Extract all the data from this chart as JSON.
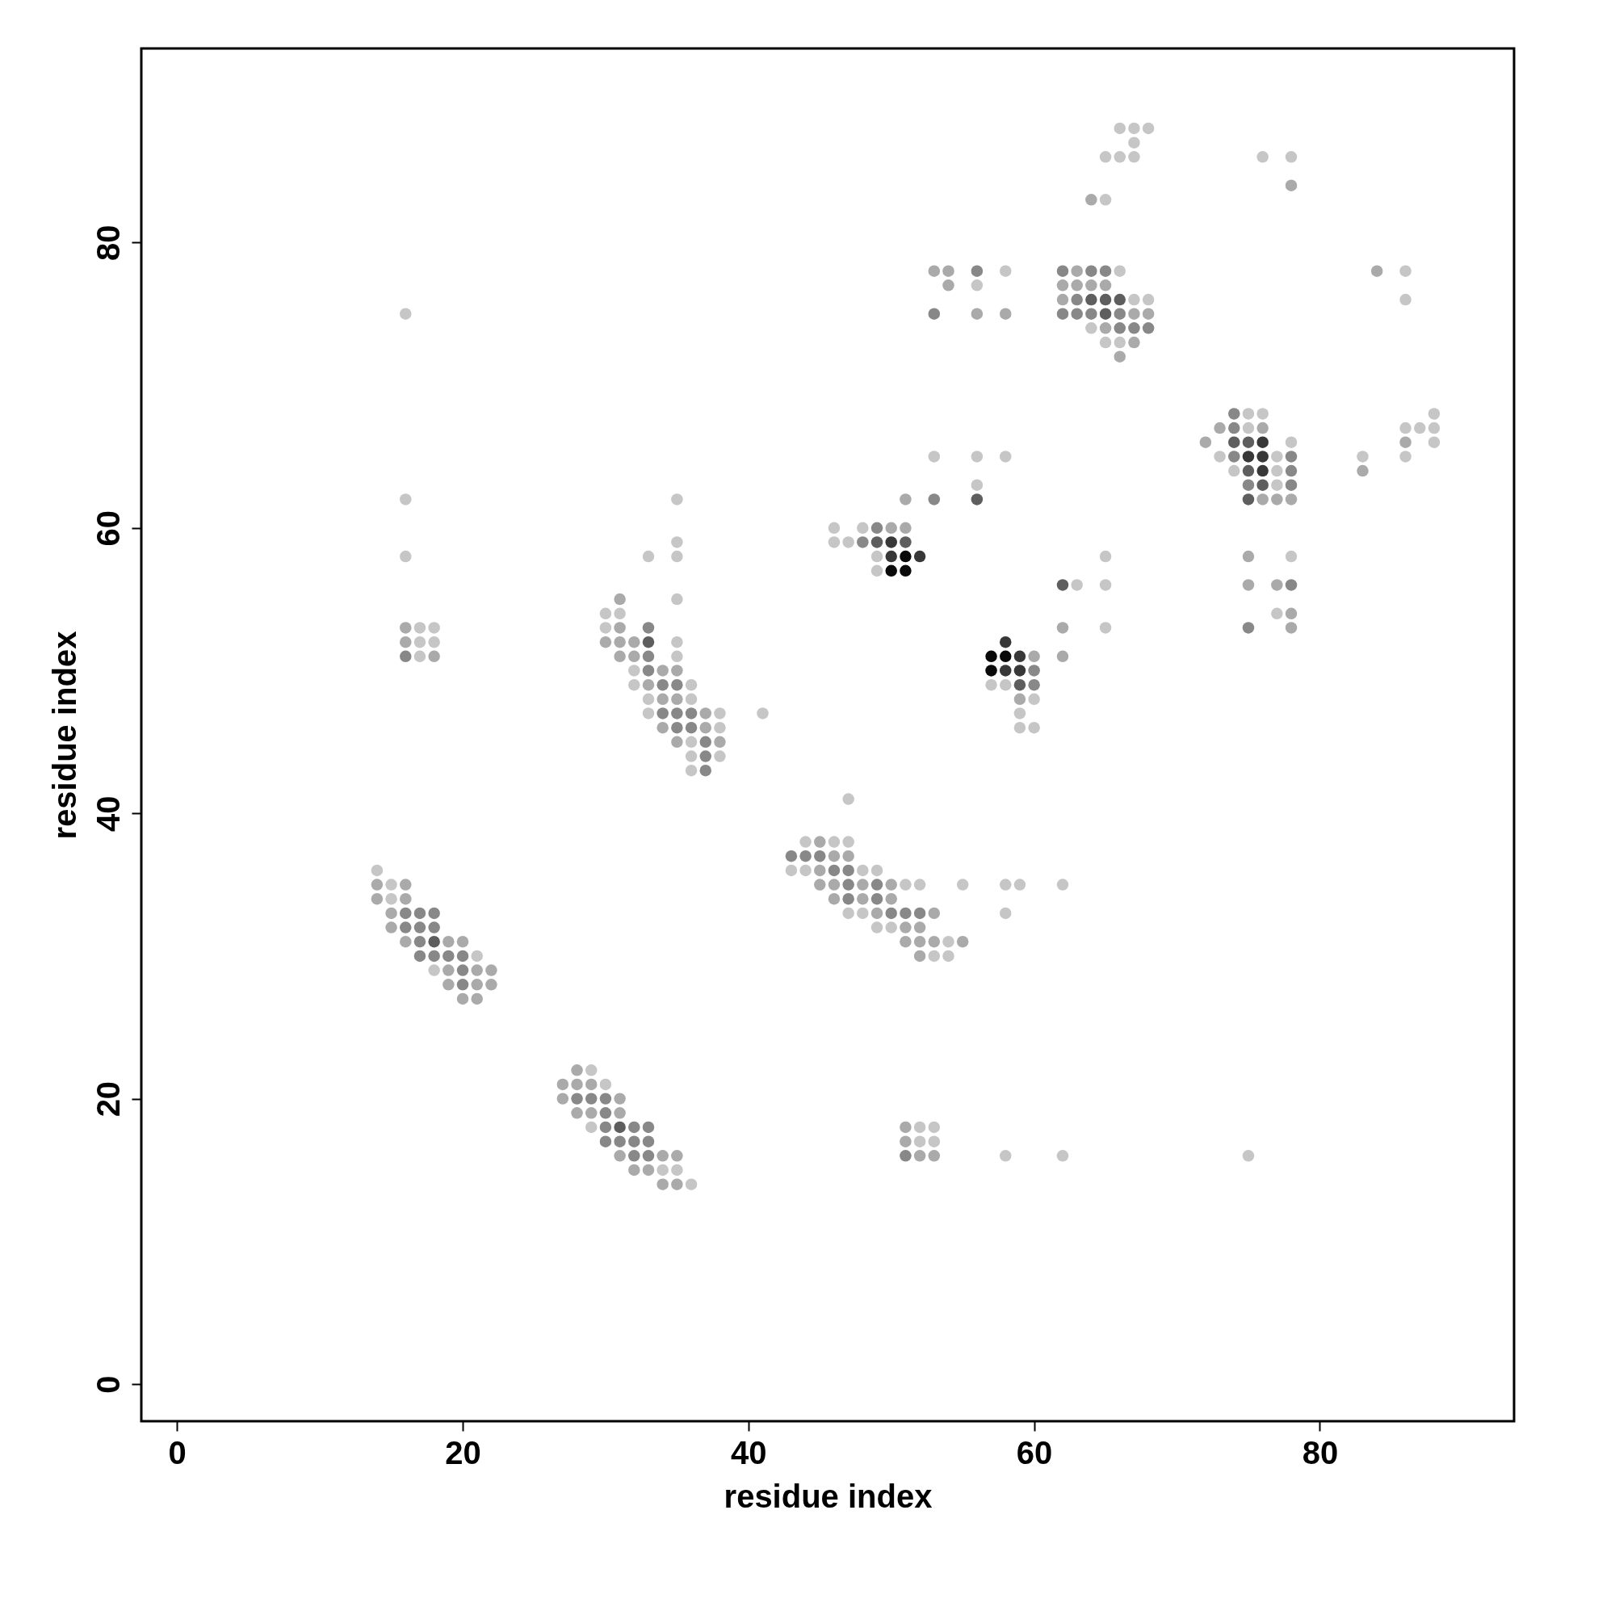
{
  "chart_data": {
    "type": "scatter",
    "xlabel": "residue index",
    "ylabel": "residue index",
    "xlim": [
      -2.5,
      93.6
    ],
    "ylim": [
      -2.6,
      93.6
    ],
    "xticks": [
      0,
      20,
      40,
      60,
      80
    ],
    "yticks": [
      0,
      20,
      40,
      60,
      80
    ],
    "grid": false,
    "marker": "circle",
    "series": [
      {
        "color": "#c6c6c6",
        "x": [
          14,
          15,
          15,
          18,
          21,
          29,
          30,
          29,
          34,
          35,
          36,
          16,
          16,
          17,
          18,
          17,
          18,
          17,
          16,
          35,
          35,
          33,
          35,
          35,
          30,
          31,
          30,
          35,
          35,
          32,
          32,
          36,
          33,
          36,
          33,
          38,
          38,
          36,
          36,
          38,
          36,
          41,
          46,
          48,
          46,
          47,
          49,
          49,
          53,
          56,
          58,
          56,
          63,
          65,
          65,
          65,
          57,
          58,
          60,
          59,
          59,
          60,
          47,
          44,
          46,
          47,
          43,
          44,
          48,
          49,
          51,
          52,
          55,
          58,
          59,
          62,
          47,
          48,
          58,
          49,
          50,
          54,
          53,
          54,
          52,
          53,
          52,
          53,
          58,
          62,
          75,
          58,
          56,
          66,
          67,
          68,
          67,
          65,
          66,
          67,
          65,
          66,
          67,
          68,
          64,
          65,
          66,
          76,
          78,
          86,
          86,
          75,
          76,
          88,
          75,
          86,
          87,
          88,
          78,
          88,
          73,
          77,
          83,
          86,
          74,
          77,
          77,
          78,
          77
        ],
        "values": [
          36,
          35,
          34,
          29,
          30,
          22,
          21,
          18,
          15,
          15,
          14,
          62,
          58,
          53,
          53,
          52,
          52,
          51,
          75,
          62,
          59,
          58,
          58,
          55,
          54,
          54,
          53,
          52,
          51,
          50,
          49,
          49,
          48,
          48,
          47,
          47,
          46,
          45,
          44,
          44,
          43,
          47,
          60,
          60,
          59,
          59,
          58,
          57,
          65,
          65,
          65,
          63,
          56,
          56,
          58,
          53,
          49,
          49,
          48,
          47,
          46,
          46,
          41,
          38,
          38,
          38,
          36,
          36,
          36,
          36,
          35,
          35,
          35,
          35,
          35,
          35,
          33,
          33,
          33,
          32,
          32,
          31,
          30,
          30,
          18,
          18,
          17,
          17,
          16,
          16,
          16,
          78,
          77,
          88,
          88,
          88,
          87,
          86,
          86,
          86,
          83,
          78,
          76,
          76,
          74,
          73,
          73,
          86,
          86,
          78,
          76,
          68,
          68,
          68,
          67,
          67,
          67,
          67,
          66,
          66,
          65,
          65,
          65,
          65,
          64,
          64,
          63,
          58,
          54
        ]
      },
      {
        "color": "#aaaaaa",
        "x": [
          14,
          16,
          14,
          16,
          15,
          15,
          16,
          19,
          20,
          19,
          21,
          22,
          19,
          21,
          22,
          20,
          21,
          28,
          27,
          28,
          29,
          27,
          31,
          28,
          29,
          31,
          31,
          34,
          35,
          32,
          33,
          34,
          35,
          16,
          16,
          18,
          31,
          31,
          30,
          31,
          32,
          31,
          32,
          34,
          35,
          33,
          34,
          35,
          37,
          34,
          37,
          35,
          38,
          50,
          51,
          51,
          62,
          62,
          60,
          59,
          45,
          46,
          47,
          45,
          45,
          46,
          48,
          50,
          46,
          48,
          50,
          49,
          53,
          51,
          52,
          51,
          52,
          53,
          55,
          52,
          51,
          51,
          52,
          53,
          53,
          54,
          54,
          56,
          58,
          64,
          63,
          62,
          63,
          64,
          65,
          62,
          67,
          68,
          65,
          67,
          66,
          78,
          84,
          73,
          76,
          72,
          86,
          83,
          76,
          77,
          78,
          75,
          75,
          77,
          78,
          78
        ],
        "values": [
          35,
          35,
          34,
          34,
          33,
          32,
          31,
          31,
          31,
          29,
          29,
          29,
          28,
          28,
          28,
          27,
          27,
          22,
          21,
          21,
          21,
          20,
          20,
          19,
          19,
          19,
          16,
          16,
          16,
          15,
          15,
          14,
          14,
          53,
          52,
          51,
          55,
          53,
          52,
          52,
          52,
          51,
          51,
          50,
          50,
          49,
          48,
          48,
          47,
          46,
          46,
          45,
          45,
          60,
          60,
          62,
          53,
          51,
          51,
          48,
          38,
          37,
          37,
          36,
          35,
          35,
          35,
          35,
          34,
          34,
          34,
          33,
          33,
          32,
          32,
          31,
          31,
          31,
          31,
          30,
          18,
          17,
          16,
          16,
          78,
          78,
          77,
          75,
          75,
          83,
          78,
          77,
          77,
          77,
          77,
          76,
          75,
          75,
          74,
          73,
          72,
          84,
          78,
          67,
          67,
          66,
          66,
          64,
          62,
          62,
          62,
          58,
          56,
          56,
          54,
          53
        ]
      },
      {
        "color": "#888888",
        "x": [
          16,
          17,
          18,
          16,
          17,
          18,
          17,
          17,
          18,
          19,
          20,
          20,
          20,
          28,
          29,
          30,
          30,
          30,
          32,
          33,
          30,
          31,
          32,
          33,
          32,
          33,
          16,
          33,
          33,
          33,
          34,
          35,
          34,
          35,
          36,
          35,
          36,
          37,
          37,
          37,
          49,
          48,
          53,
          60,
          60,
          43,
          44,
          45,
          46,
          47,
          47,
          49,
          47,
          49,
          50,
          51,
          52,
          51,
          56,
          53,
          62,
          64,
          65,
          63,
          62,
          63,
          64,
          66,
          66,
          67,
          68,
          74,
          74,
          74,
          78,
          78,
          75,
          78,
          78,
          75
        ],
        "values": [
          33,
          33,
          33,
          32,
          32,
          32,
          31,
          30,
          30,
          30,
          30,
          29,
          28,
          20,
          20,
          20,
          19,
          18,
          18,
          18,
          17,
          17,
          17,
          17,
          16,
          16,
          51,
          53,
          51,
          50,
          49,
          49,
          47,
          47,
          47,
          46,
          46,
          45,
          44,
          43,
          60,
          59,
          62,
          50,
          49,
          37,
          37,
          37,
          36,
          36,
          35,
          35,
          34,
          34,
          33,
          33,
          33,
          16,
          78,
          75,
          78,
          78,
          78,
          76,
          75,
          75,
          75,
          75,
          74,
          74,
          74,
          68,
          67,
          65,
          65,
          64,
          63,
          63,
          56,
          53
        ]
      },
      {
        "color": "#5e5e5e",
        "x": [
          18,
          31,
          33,
          49,
          51,
          56,
          62,
          59,
          64,
          65,
          66,
          65,
          74,
          75,
          75,
          76,
          75
        ],
        "values": [
          31,
          18,
          52,
          59,
          59,
          62,
          56,
          49,
          76,
          76,
          76,
          75,
          66,
          66,
          64,
          63,
          62
        ]
      },
      {
        "color": "#383838",
        "x": [
          50,
          50,
          52,
          58,
          59,
          58,
          59,
          76,
          75,
          76,
          76
        ],
        "values": [
          59,
          58,
          58,
          52,
          51,
          50,
          50,
          66,
          65,
          65,
          64
        ]
      },
      {
        "color": "#0a0a0a",
        "x": [
          51,
          50,
          51,
          57,
          58,
          57
        ],
        "values": [
          58,
          57,
          57,
          51,
          51,
          50
        ]
      }
    ]
  }
}
